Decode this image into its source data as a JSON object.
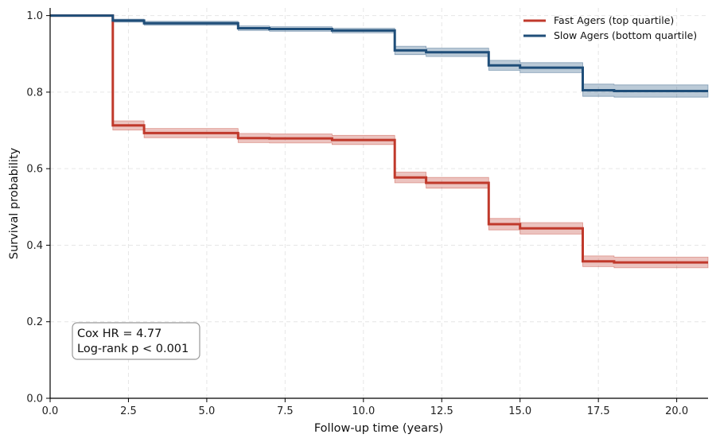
{
  "chart_data": {
    "type": "line",
    "subtype": "kaplan-meier step",
    "xlabel": "Follow-up time (years)",
    "ylabel": "Survival probability",
    "xlim": [
      0,
      21
    ],
    "ylim": [
      0,
      1.02
    ],
    "xticks": [
      0.0,
      2.5,
      5.0,
      7.5,
      10.0,
      12.5,
      15.0,
      17.5,
      20.0
    ],
    "xtick_labels": [
      "0.0",
      "2.5",
      "5.0",
      "7.5",
      "10.0",
      "12.5",
      "15.0",
      "17.5",
      "20.0"
    ],
    "yticks": [
      0.0,
      0.2,
      0.4,
      0.6,
      0.8,
      1.0
    ],
    "ytick_labels": [
      "0.0",
      "0.2",
      "0.4",
      "0.6",
      "0.8",
      "1.0"
    ],
    "grid": true,
    "legend_position": "top-right",
    "series": [
      {
        "name": "Fast Agers (top quartile)",
        "color": "#c0392b",
        "x": [
          0,
          2,
          3,
          6,
          7,
          9,
          11,
          12,
          14,
          15,
          17,
          18,
          21
        ],
        "y": [
          1.0,
          0.713,
          0.693,
          0.68,
          0.679,
          0.675,
          0.577,
          0.563,
          0.455,
          0.444,
          0.358,
          0.355,
          0.355
        ],
        "ci_lower": [
          1.0,
          0.701,
          0.681,
          0.668,
          0.667,
          0.663,
          0.563,
          0.549,
          0.44,
          0.429,
          0.344,
          0.341,
          0.341
        ],
        "ci_upper": [
          1.0,
          0.725,
          0.705,
          0.692,
          0.691,
          0.687,
          0.591,
          0.577,
          0.47,
          0.459,
          0.372,
          0.369,
          0.369
        ]
      },
      {
        "name": "Slow Agers (bottom quartile)",
        "color": "#1f4e79",
        "x": [
          0,
          2,
          3,
          6,
          7,
          9,
          11,
          12,
          14,
          15,
          17,
          18,
          21
        ],
        "y": [
          1.0,
          0.987,
          0.98,
          0.967,
          0.965,
          0.961,
          0.909,
          0.904,
          0.87,
          0.864,
          0.805,
          0.803,
          0.803
        ],
        "ci_lower": [
          1.0,
          0.983,
          0.975,
          0.961,
          0.959,
          0.955,
          0.898,
          0.893,
          0.857,
          0.851,
          0.789,
          0.787,
          0.787
        ],
        "ci_upper": [
          1.0,
          0.991,
          0.985,
          0.973,
          0.971,
          0.967,
          0.92,
          0.915,
          0.883,
          0.877,
          0.821,
          0.819,
          0.819
        ]
      }
    ],
    "annotations": [
      "Cox HR = 4.77",
      "Log-rank p < 0.001"
    ]
  }
}
